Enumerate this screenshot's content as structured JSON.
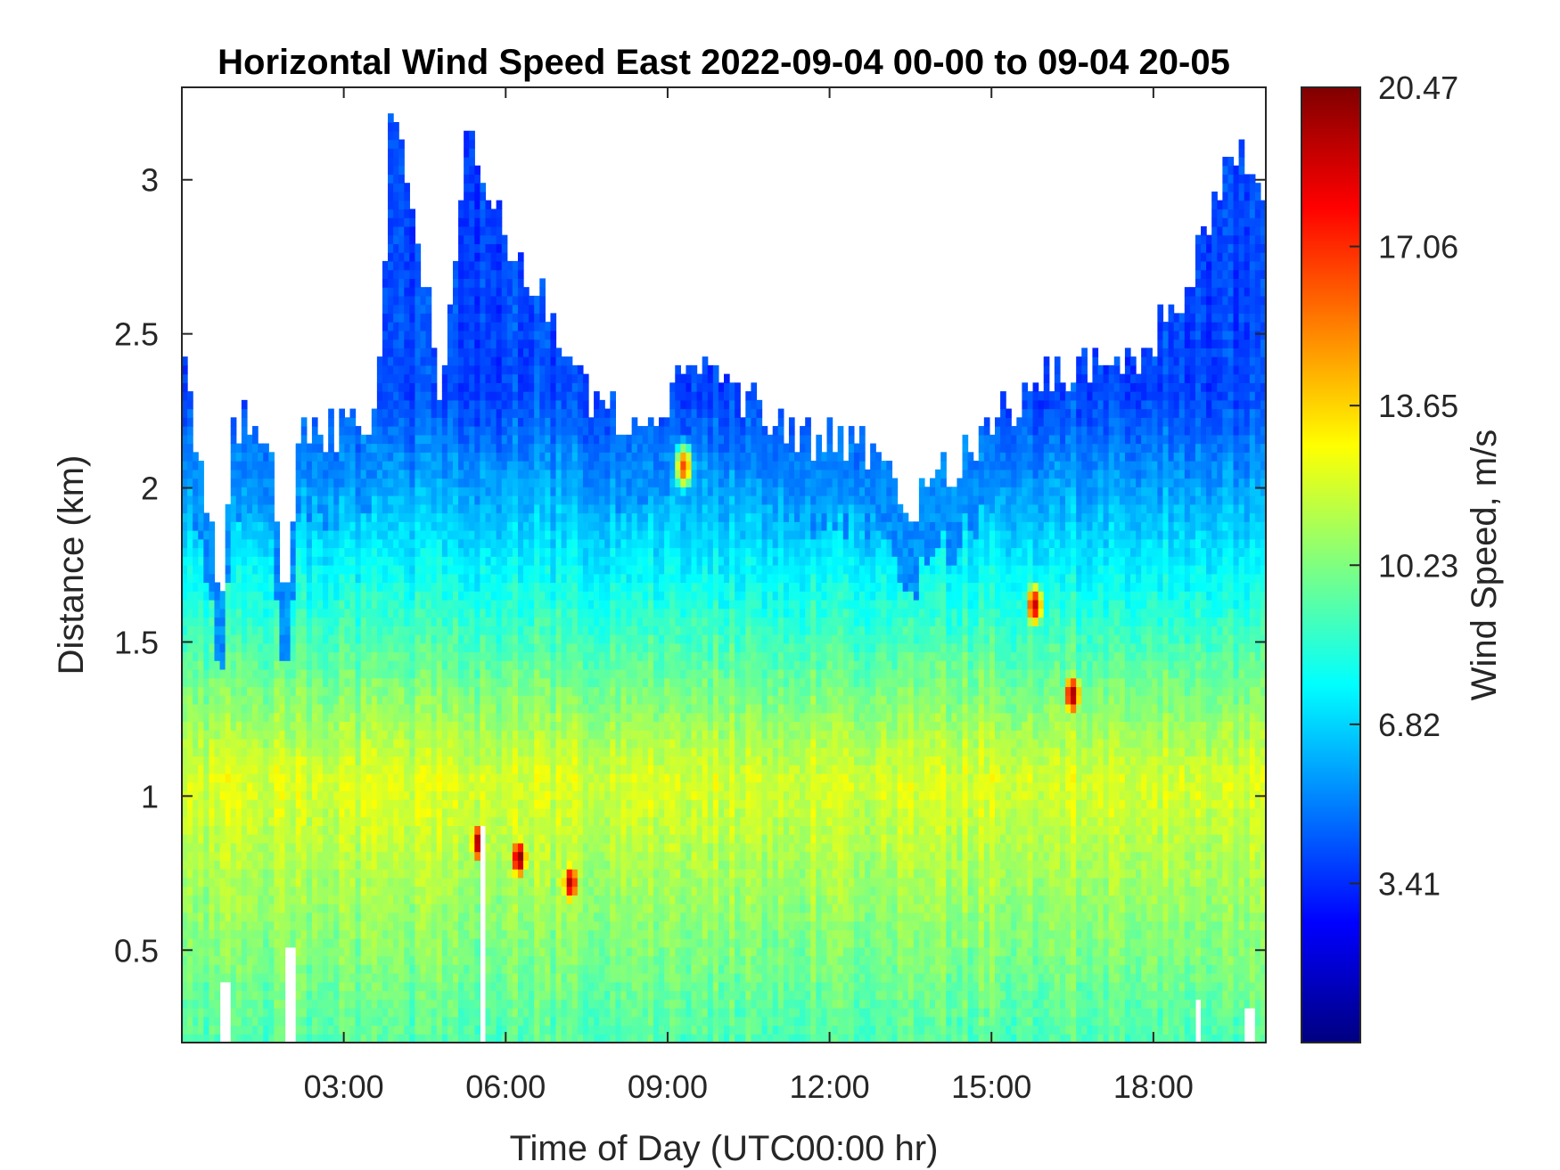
{
  "chart_data": {
    "type": "heatmap",
    "title": "Horizontal Wind Speed East 2022-09-04 00-00 to 09-04 20-05",
    "xlabel": "Time of Day (UTC00:00 hr)",
    "ylabel": "Distance (km)",
    "colorbar_label": "Wind Speed, m/s",
    "x_unit": "hours",
    "xlim": [
      0,
      20.083
    ],
    "ylim": [
      0.2,
      3.3
    ],
    "x_ticks": [
      {
        "value": 3,
        "label": "03:00"
      },
      {
        "value": 6,
        "label": "06:00"
      },
      {
        "value": 9,
        "label": "09:00"
      },
      {
        "value": 12,
        "label": "12:00"
      },
      {
        "value": 15,
        "label": "15:00"
      },
      {
        "value": 18,
        "label": "18:00"
      }
    ],
    "y_ticks": [
      {
        "value": 0.5,
        "label": "0.5"
      },
      {
        "value": 1,
        "label": "1"
      },
      {
        "value": 1.5,
        "label": "1.5"
      },
      {
        "value": 2,
        "label": "2"
      },
      {
        "value": 2.5,
        "label": "2.5"
      },
      {
        "value": 3,
        "label": "3"
      }
    ],
    "colorbar_range": [
      0,
      20.47
    ],
    "colorbar_ticks": [
      {
        "value": 3.41,
        "label": "3.41"
      },
      {
        "value": 6.82,
        "label": "6.82"
      },
      {
        "value": 10.23,
        "label": "10.23"
      },
      {
        "value": 13.65,
        "label": "13.65"
      },
      {
        "value": 17.06,
        "label": "17.06"
      },
      {
        "value": 20.47,
        "label": "20.47"
      }
    ],
    "colormap": "jet",
    "data_top_km": [
      {
        "x": 0.0,
        "top": 2.45
      },
      {
        "x": 0.3,
        "top": 2.1
      },
      {
        "x": 0.75,
        "top": 1.62
      },
      {
        "x": 0.9,
        "top": 2.2
      },
      {
        "x": 1.6,
        "top": 2.2
      },
      {
        "x": 1.9,
        "top": 1.55
      },
      {
        "x": 2.2,
        "top": 2.2
      },
      {
        "x": 3.6,
        "top": 2.2
      },
      {
        "x": 3.9,
        "top": 3.3
      },
      {
        "x": 4.2,
        "top": 3.0
      },
      {
        "x": 4.8,
        "top": 2.3
      },
      {
        "x": 5.3,
        "top": 3.2
      },
      {
        "x": 6.0,
        "top": 2.8
      },
      {
        "x": 6.8,
        "top": 2.6
      },
      {
        "x": 7.5,
        "top": 2.3
      },
      {
        "x": 8.5,
        "top": 2.2
      },
      {
        "x": 9.5,
        "top": 2.4
      },
      {
        "x": 10.5,
        "top": 2.3
      },
      {
        "x": 11.5,
        "top": 2.15
      },
      {
        "x": 12.5,
        "top": 2.15
      },
      {
        "x": 13.5,
        "top": 1.95
      },
      {
        "x": 14.5,
        "top": 2.1
      },
      {
        "x": 15.5,
        "top": 2.3
      },
      {
        "x": 16.5,
        "top": 2.4
      },
      {
        "x": 17.5,
        "top": 2.4
      },
      {
        "x": 18.5,
        "top": 2.6
      },
      {
        "x": 19.5,
        "top": 3.1
      },
      {
        "x": 20.083,
        "top": 2.9
      }
    ],
    "dropouts": [
      {
        "x": 0.8,
        "top": 0.4
      },
      {
        "x": 2.0,
        "top": 0.5
      },
      {
        "x": 5.55,
        "top": 0.9
      },
      {
        "x": 18.8,
        "top": 0.35
      },
      {
        "x": 19.8,
        "top": 0.3
      }
    ],
    "hotspots": [
      {
        "x": 5.5,
        "y": 0.85,
        "speed": 20.0
      },
      {
        "x": 6.25,
        "y": 0.8,
        "speed": 20.47
      },
      {
        "x": 7.2,
        "y": 0.72,
        "speed": 19.5
      },
      {
        "x": 9.3,
        "y": 2.07,
        "speed": 16.5
      },
      {
        "x": 15.8,
        "y": 1.62,
        "speed": 19.0
      },
      {
        "x": 16.5,
        "y": 1.33,
        "speed": 20.0
      }
    ]
  }
}
